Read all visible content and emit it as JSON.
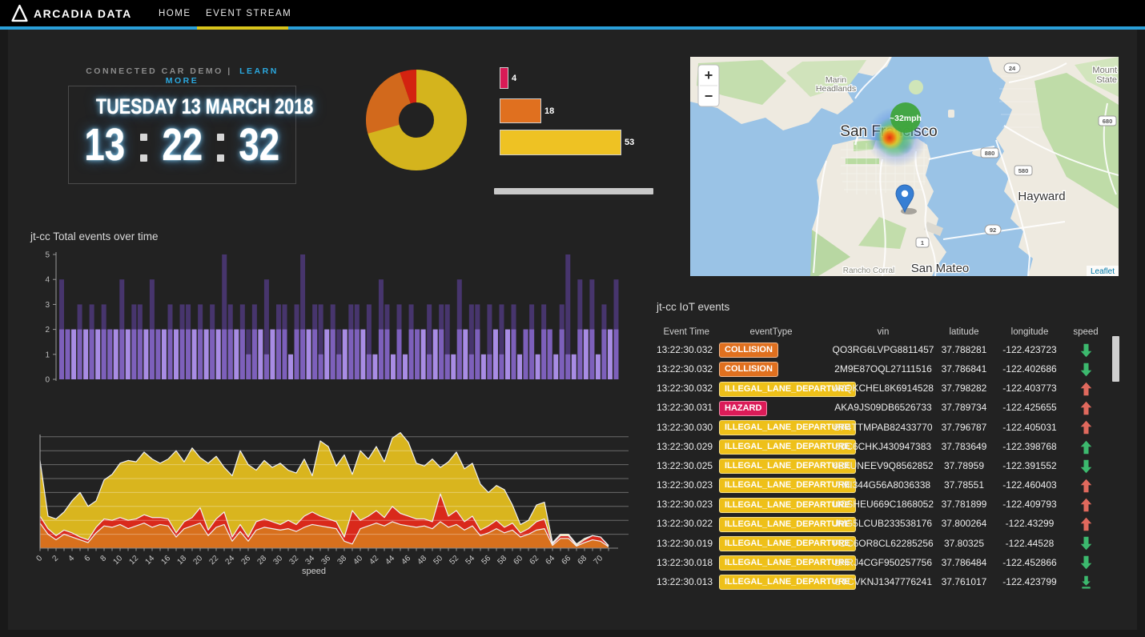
{
  "nav": {
    "brand": "ARCADIA DATA",
    "items": [
      {
        "label": "HOME",
        "active": false
      },
      {
        "label": "EVENT STREAM",
        "active": true
      }
    ]
  },
  "intro": {
    "label": "CONNECTED CAR DEMO",
    "separator": "|",
    "link_label": "LEARN MORE"
  },
  "clock": {
    "date": "TUESDAY 13 MARCH 2018",
    "hours": "13",
    "minutes": "22",
    "seconds": "32"
  },
  "colors": {
    "page_bg": "#222222",
    "nav_bg": "#000000",
    "nav_accent_blue": "#2a9fd8",
    "tab_underline_yellow": "#d8c41c",
    "link_blue": "#2ba9e0",
    "trend_green": "#3cb96e",
    "trend_red": "#e0695d"
  },
  "chart_data": [
    {
      "id": "event-type-donut",
      "type": "pie",
      "values": [
        53,
        18,
        4
      ],
      "labels": [
        "ILLEGAL_LANE_DEPARTURE",
        "COLLISION",
        "HAZARD"
      ],
      "colors": [
        "#d4b41d",
        "#d2691c",
        "#d32310"
      ],
      "inner_radius_ratio": 0.35,
      "legend_position": "none"
    },
    {
      "id": "event-type-bars",
      "type": "bar",
      "orientation": "horizontal",
      "values": [
        4,
        18,
        53
      ],
      "data_labels": [
        "4",
        "18",
        "53"
      ],
      "colors": [
        "#d91a56",
        "#e0701f",
        "#eec223"
      ]
    },
    {
      "id": "total-events-over-time",
      "type": "bar",
      "title": "jt-cc Total events over time",
      "ylim": [
        0,
        5
      ],
      "yticks": [
        0,
        1,
        2,
        3,
        4,
        5
      ],
      "series": [
        {
          "name": "base-events",
          "color": "#a88ce4",
          "values": [
            2,
            2,
            2,
            2,
            2,
            2,
            2,
            2,
            2,
            2,
            2,
            2,
            2,
            2,
            2,
            2,
            2,
            2,
            2,
            2,
            2,
            2,
            2,
            2,
            2,
            2,
            2,
            2,
            2,
            2,
            2,
            1,
            2,
            2,
            1,
            2,
            2,
            2,
            1,
            2,
            2,
            2,
            2,
            1,
            2,
            2,
            1,
            2,
            2,
            2,
            2,
            1,
            1,
            2,
            2,
            1,
            2,
            1,
            2,
            2,
            2,
            1,
            2,
            2,
            1,
            1,
            2,
            2,
            1,
            2,
            1,
            1,
            2,
            1,
            2,
            2,
            1,
            2,
            2,
            1,
            2,
            2,
            1,
            2,
            1,
            1,
            2,
            2,
            2,
            1,
            2,
            2,
            2
          ]
        },
        {
          "name": "overlay-events",
          "color": "rgba(96,66,160,0.6)",
          "values": [
            4,
            2,
            0,
            3,
            0,
            3,
            0,
            3,
            2,
            0,
            4,
            0,
            3,
            3,
            0,
            4,
            2,
            0,
            3,
            0,
            3,
            3,
            0,
            3,
            0,
            3,
            0,
            5,
            3,
            0,
            3,
            2,
            3,
            0,
            4,
            0,
            3,
            3,
            0,
            3,
            5,
            0,
            3,
            3,
            0,
            3,
            2,
            0,
            3,
            3,
            0,
            3,
            0,
            4,
            3,
            0,
            3,
            0,
            3,
            2,
            0,
            3,
            0,
            3,
            3,
            0,
            4,
            0,
            3,
            3,
            0,
            3,
            0,
            3,
            0,
            3,
            0,
            2,
            3,
            0,
            3,
            2,
            0,
            3,
            5,
            0,
            4,
            0,
            4,
            0,
            3,
            0,
            4
          ]
        }
      ]
    },
    {
      "id": "speed-histogram",
      "type": "area",
      "stacked": true,
      "xlabel": "speed",
      "x_range": [
        0,
        71
      ],
      "x_tick_label_step": 2,
      "y_range": [
        0,
        8
      ],
      "grid": true,
      "series": [
        {
          "name": "orange-band",
          "color": "#d8701d"
        },
        {
          "name": "red-band",
          "color": "#d9291b"
        },
        {
          "name": "yellow-band",
          "color": "#d9b51e"
        }
      ],
      "bands": {
        "orange_top": [
          1.8,
          1.0,
          0.6,
          1.0,
          0.8,
          0.6,
          0.4,
          1.1,
          1.6,
          1.5,
          1.7,
          1.4,
          1.6,
          1.8,
          1.5,
          1.7,
          1.6,
          0.8,
          1.4,
          1.6,
          1.8,
          0.9,
          1.5,
          1.7,
          0.5,
          1.2,
          0.5,
          1.3,
          1.5,
          1.4,
          1.3,
          1.4,
          1.2,
          1.5,
          1.7,
          1.6,
          1.5,
          1.4,
          0.5,
          0.3,
          1.4,
          1.6,
          1.8,
          1.6,
          1.9,
          1.7,
          1.6,
          1.5,
          1.6,
          1.4,
          1.9,
          1.5,
          1.7,
          1.3,
          1.6,
          0.9,
          1.1,
          1.4,
          1.1,
          1.3,
          0.8,
          1.0,
          1.3,
          1.4,
          0.2,
          0.7,
          0.7,
          0.15,
          0.4,
          0.6,
          0.5,
          0.1
        ],
        "red_top": [
          2.3,
          1.4,
          0.9,
          1.3,
          1.1,
          0.8,
          0.6,
          1.5,
          2.1,
          2.0,
          2.2,
          2.0,
          2.1,
          2.4,
          2.2,
          2.2,
          2.1,
          1.1,
          1.9,
          2.2,
          2.9,
          1.3,
          2.1,
          2.6,
          0.8,
          1.7,
          0.8,
          1.9,
          2.1,
          1.9,
          1.7,
          2.0,
          1.7,
          2.3,
          2.6,
          2.3,
          2.1,
          1.9,
          0.8,
          2.7,
          2.0,
          2.3,
          2.7,
          2.2,
          3.0,
          2.5,
          2.3,
          2.1,
          2.1,
          1.9,
          3.9,
          2.3,
          2.7,
          1.9,
          2.3,
          1.3,
          1.6,
          2.0,
          1.5,
          1.8,
          1.1,
          1.4,
          1.9,
          2.1,
          0.3,
          0.9,
          0.9,
          0.2,
          0.6,
          0.9,
          0.8,
          0.15
        ],
        "total_top": [
          6.3,
          2.3,
          2.1,
          2.6,
          3.4,
          4.0,
          3.0,
          3.4,
          4.9,
          5.3,
          6.1,
          6.3,
          6.2,
          6.9,
          6.4,
          6.1,
          6.4,
          7.0,
          6.2,
          7.2,
          6.5,
          6.1,
          6.6,
          5.8,
          5.2,
          7.0,
          6.0,
          5.6,
          6.3,
          5.8,
          6.1,
          5.6,
          5.4,
          6.4,
          5.2,
          7.7,
          7.3,
          5.9,
          6.7,
          5.3,
          7.0,
          6.4,
          7.3,
          6.2,
          7.9,
          8.3,
          7.6,
          6.1,
          5.9,
          6.4,
          5.8,
          6.2,
          6.9,
          5.7,
          6.1,
          4.6,
          4.0,
          4.5,
          4.2,
          3.1,
          1.7,
          2.0,
          3.1,
          3.3,
          0.4,
          1.0,
          1.0,
          0.3,
          0.7,
          0.9,
          0.8,
          0.2
        ]
      }
    }
  ],
  "map": {
    "controls": {
      "zoom_in": "+",
      "zoom_out": "−"
    },
    "speed_badge": "~32mph",
    "attribution": "Leaflet",
    "place_labels": {
      "san_francisco": "San Francisco",
      "hayward": "Hayward",
      "san_mateo": "San Mateo",
      "marin_line1": "Marin",
      "marin_line2": "Headlands",
      "rancho": "Rancho Corral",
      "mount_line1": "Mount",
      "mount_line2": "State"
    },
    "road_shields": {
      "s24": "24",
      "s680": "680",
      "s880": "880",
      "s580": "580",
      "s92": "92",
      "s1": "1"
    }
  },
  "events_table": {
    "title": "jt-cc IoT events",
    "columns": [
      "Event Time",
      "eventType",
      "vin",
      "latitude",
      "longitude",
      "speed"
    ],
    "badge_colors": {
      "COLLISION": "#e0701f",
      "ILLEGAL_LANE_DEPARTURE": "#eec019",
      "HAZARD": "#db1b58"
    },
    "rows": [
      {
        "time": "13:22:30.032",
        "type": "COLLISION",
        "vin": "QO3RG6LVPG8811457",
        "lat": "37.788281",
        "lon": "-122.423723",
        "trend": "down",
        "trend_color": "green"
      },
      {
        "time": "13:22:30.032",
        "type": "COLLISION",
        "vin": "2M9E87OQL27111516",
        "lat": "37.786841",
        "lon": "-122.402686",
        "trend": "down",
        "trend_color": "green"
      },
      {
        "time": "13:22:30.032",
        "type": "ILLEGAL_LANE_DEPARTURE",
        "vin": "AVQKCHEL8K6914528",
        "lat": "37.798282",
        "lon": "-122.403773",
        "trend": "up",
        "trend_color": "red"
      },
      {
        "time": "13:22:30.031",
        "type": "HAZARD",
        "vin": "AKA9JS09DB6526733",
        "lat": "37.789734",
        "lon": "-122.425655",
        "trend": "up",
        "trend_color": "red"
      },
      {
        "time": "13:22:30.030",
        "type": "ILLEGAL_LANE_DEPARTURE",
        "vin": "BF4TTMPAB82433770",
        "lat": "37.796787",
        "lon": "-122.405031",
        "trend": "up",
        "trend_color": "red"
      },
      {
        "time": "13:22:30.029",
        "type": "ILLEGAL_LANE_DEPARTURE",
        "vin": "50C6CHKJ430947383",
        "lat": "37.783649",
        "lon": "-122.398768",
        "trend": "up",
        "trend_color": "green"
      },
      {
        "time": "13:22:30.025",
        "type": "ILLEGAL_LANE_DEPARTURE",
        "vin": "62KUNEEV9Q8562852",
        "lat": "37.78959",
        "lon": "-122.391552",
        "trend": "down",
        "trend_color": "green"
      },
      {
        "time": "13:22:30.023",
        "type": "ILLEGAL_LANE_DEPARTURE",
        "vin": "TMI344G56A8036338",
        "lat": "37.78551",
        "lon": "-122.460403",
        "trend": "up",
        "trend_color": "red"
      },
      {
        "time": "13:22:30.023",
        "type": "ILLEGAL_LANE_DEPARTURE",
        "vin": "UCSHEU669C1868052",
        "lat": "37.781899",
        "lon": "-122.409793",
        "trend": "up",
        "trend_color": "red"
      },
      {
        "time": "13:22:30.022",
        "type": "ILLEGAL_LANE_DEPARTURE",
        "vin": "JVG5LCUB233538176",
        "lat": "37.800264",
        "lon": "-122.43299",
        "trend": "up",
        "trend_color": "red"
      },
      {
        "time": "13:22:30.019",
        "type": "ILLEGAL_LANE_DEPARTURE",
        "vin": "FOC6OR8CL62285256",
        "lat": "37.80325",
        "lon": "-122.44528",
        "trend": "down",
        "trend_color": "green"
      },
      {
        "time": "13:22:30.018",
        "type": "ILLEGAL_LANE_DEPARTURE",
        "vin": "LHRJ4CGF950257756",
        "lat": "37.786484",
        "lon": "-122.452866",
        "trend": "down",
        "trend_color": "green"
      },
      {
        "time": "13:22:30.013",
        "type": "ILLEGAL_LANE_DEPARTURE",
        "vin": "CTCVKNJ1347776241",
        "lat": "37.761017",
        "lon": "-122.423799",
        "trend": "down-stop",
        "trend_color": "green"
      }
    ]
  }
}
